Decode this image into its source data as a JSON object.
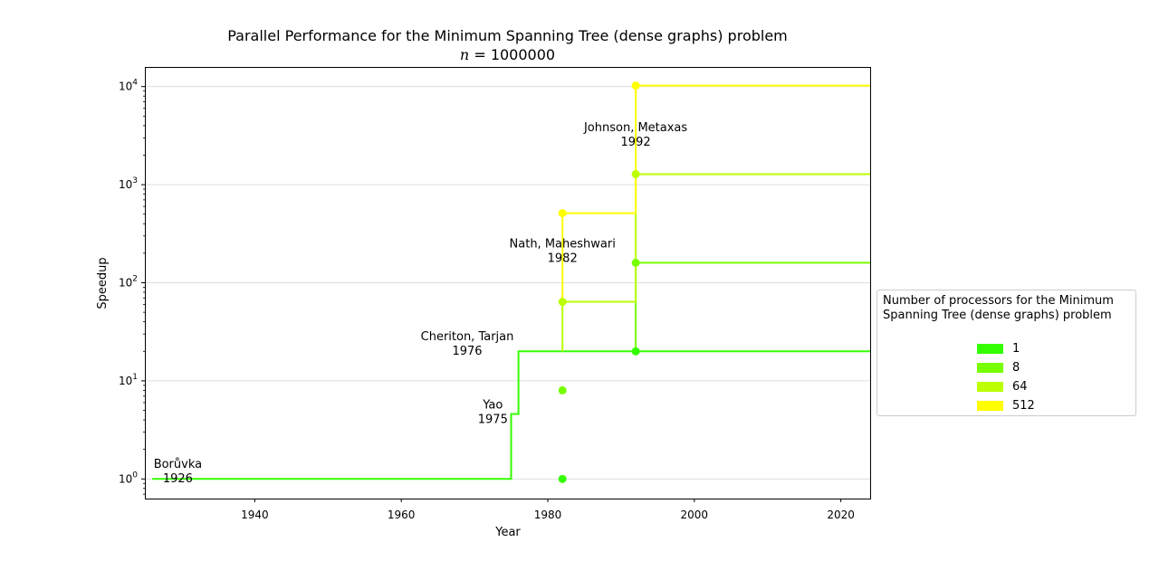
{
  "chart_data": {
    "type": "line",
    "title": "Parallel Performance for the Minimum Spanning Tree (dense graphs) problem",
    "subtitle_var": "n",
    "subtitle_value": "1000000",
    "xlabel": "Year",
    "ylabel": "Speedup",
    "xlim": [
      1925,
      2024
    ],
    "ylim_log10": [
      -0.2,
      4.2
    ],
    "y_scale": "log",
    "grid": "horizontal",
    "x_ticks": [
      "1940",
      "1960",
      "1980",
      "2000",
      "2020"
    ],
    "y_ticks": [
      "10^0",
      "10^1",
      "10^2",
      "10^3",
      "10^4"
    ],
    "legend_position": "right",
    "legend_title": "Number of processors for the Minimum Spanning Tree (dense graphs) problem",
    "series": [
      {
        "name": "1",
        "color": "#33ff00",
        "step_path": [
          [
            1926,
            1
          ],
          [
            1975,
            1
          ],
          [
            1975,
            4.6
          ],
          [
            1976,
            4.6
          ],
          [
            1976,
            20
          ],
          [
            2024,
            20
          ]
        ],
        "points": [
          [
            1982,
            1
          ],
          [
            1992,
            20
          ]
        ]
      },
      {
        "name": "8",
        "color": "#77ff00",
        "step_path": [
          [
            1992,
            20
          ],
          [
            1992,
            160
          ],
          [
            2024,
            160
          ]
        ],
        "points": [
          [
            1982,
            8
          ],
          [
            1992,
            160
          ]
        ]
      },
      {
        "name": "64",
        "color": "#bbff00",
        "step_path": [
          [
            1982,
            20
          ],
          [
            1982,
            64
          ],
          [
            1992,
            64
          ],
          [
            1992,
            1280
          ],
          [
            2024,
            1280
          ]
        ],
        "points": [
          [
            1982,
            64
          ],
          [
            1992,
            1280
          ]
        ]
      },
      {
        "name": "512",
        "color": "#ffff00",
        "step_path": [
          [
            1982,
            64
          ],
          [
            1982,
            512
          ],
          [
            1992,
            512
          ],
          [
            1992,
            10240
          ],
          [
            2024,
            10240
          ]
        ],
        "points": [
          [
            1982,
            512
          ],
          [
            1992,
            10240
          ]
        ]
      }
    ],
    "annotations": [
      {
        "lines": [
          "Borůvka",
          "1926"
        ],
        "x": 1929.5,
        "y": 1.3
      },
      {
        "lines": [
          "Yao",
          "1975"
        ],
        "x": 1972.5,
        "y": 5.2
      },
      {
        "lines": [
          "Cheriton, Tarjan",
          "1976"
        ],
        "x": 1969,
        "y": 26
      },
      {
        "lines": [
          "Nath, Maheshwari",
          "1982"
        ],
        "x": 1982,
        "y": 230
      },
      {
        "lines": [
          "Johnson, Metaxas",
          "1992"
        ],
        "x": 1992,
        "y": 3500
      }
    ]
  }
}
